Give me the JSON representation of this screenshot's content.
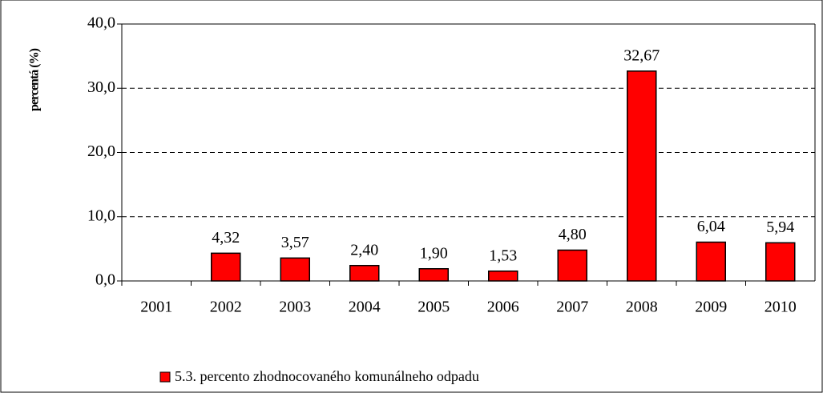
{
  "chart_data": {
    "type": "bar",
    "y_label": "percentá (%)",
    "categories": [
      "2001",
      "2002",
      "2003",
      "2004",
      "2005",
      "2006",
      "2007",
      "2008",
      "2009",
      "2010"
    ],
    "series": [
      {
        "name": "5.3. percento zhodnocovaného komunálneho odpadu",
        "color": "#ff0000",
        "values": [
          null,
          4.32,
          3.57,
          2.4,
          1.9,
          1.53,
          4.8,
          32.67,
          6.04,
          5.94
        ],
        "value_labels": [
          null,
          "4,32",
          "3,57",
          "2,40",
          "1,90",
          "1,53",
          "4,80",
          "32,67",
          "6,04",
          "5,94"
        ]
      }
    ],
    "ylim": [
      0,
      40
    ],
    "yticks": [
      {
        "value": 0,
        "label": "0,0"
      },
      {
        "value": 10,
        "label": "10,0"
      },
      {
        "value": 20,
        "label": "20,0"
      },
      {
        "value": 30,
        "label": "30,0"
      },
      {
        "value": 40,
        "label": "40,0"
      }
    ],
    "grid": true
  }
}
